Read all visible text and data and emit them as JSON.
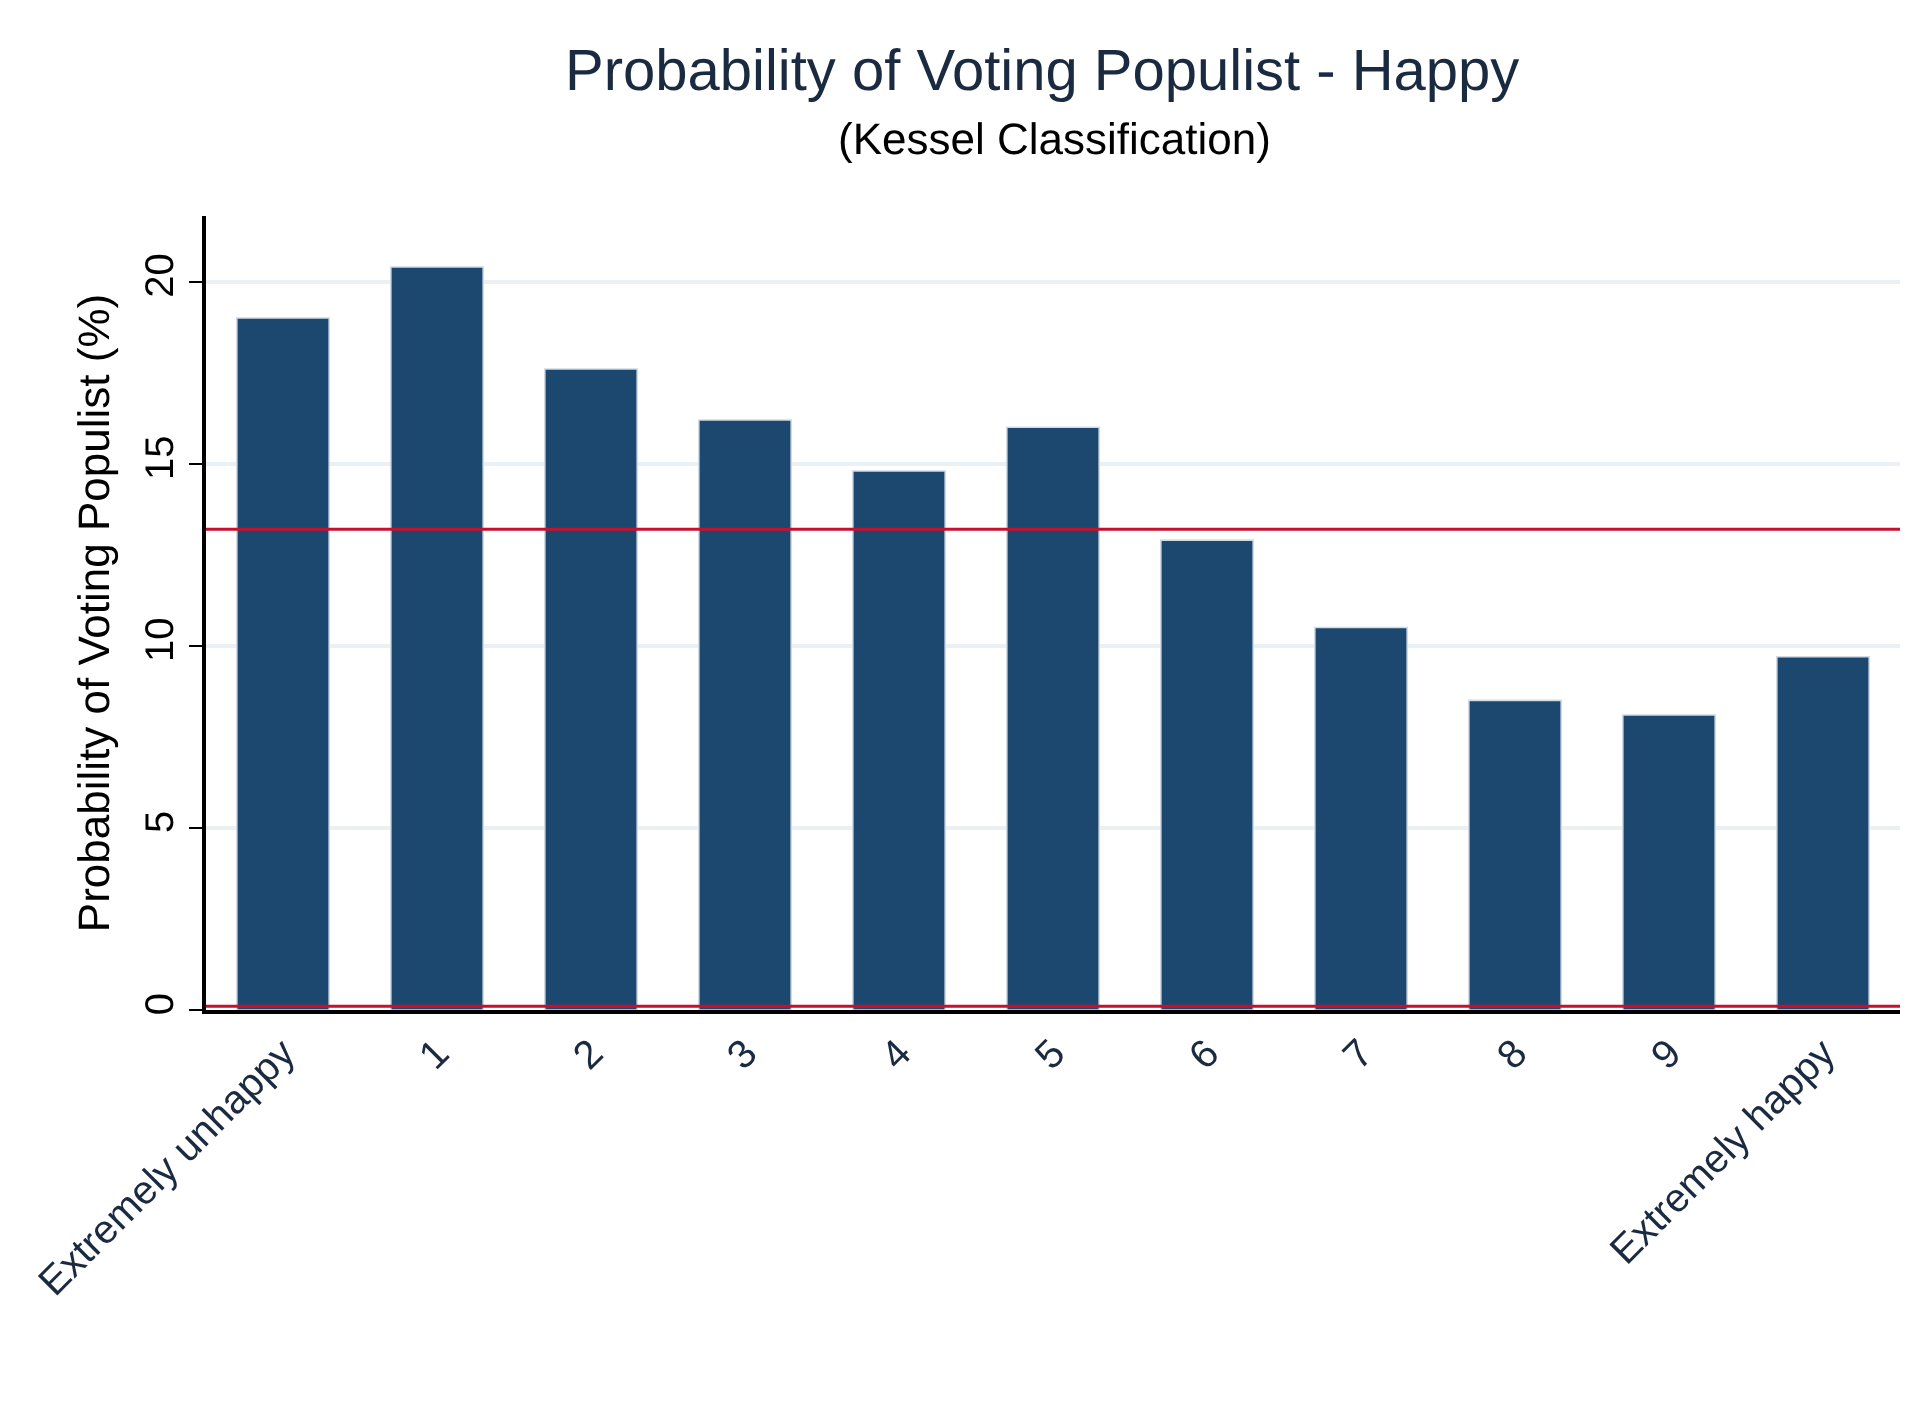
{
  "chart_data": {
    "type": "bar",
    "title": "Probability of Voting Populist - Happy",
    "subtitle": "(Kessel Classification)",
    "ylabel": "Probability of Voting Populist (%)",
    "categories": [
      "Extremely unhappy",
      "1",
      "2",
      "3",
      "4",
      "5",
      "6",
      "7",
      "8",
      "9",
      "Extremely happy"
    ],
    "series": [
      {
        "color": "#1c476f",
        "values": [
          19.0,
          20.4,
          17.6,
          16.2,
          14.8,
          16.0,
          12.9,
          10.5,
          8.5,
          8.1,
          9.7
        ]
      }
    ],
    "ylim": [
      0,
      21.8
    ],
    "yticks": [
      0,
      5,
      10,
      15,
      20
    ],
    "grid": "y",
    "ref_lines": [
      {
        "axis": "y",
        "value": 13.2,
        "color": "#c8102e"
      },
      {
        "axis": "y",
        "value": 0.1,
        "color": "#c8102e"
      }
    ]
  }
}
